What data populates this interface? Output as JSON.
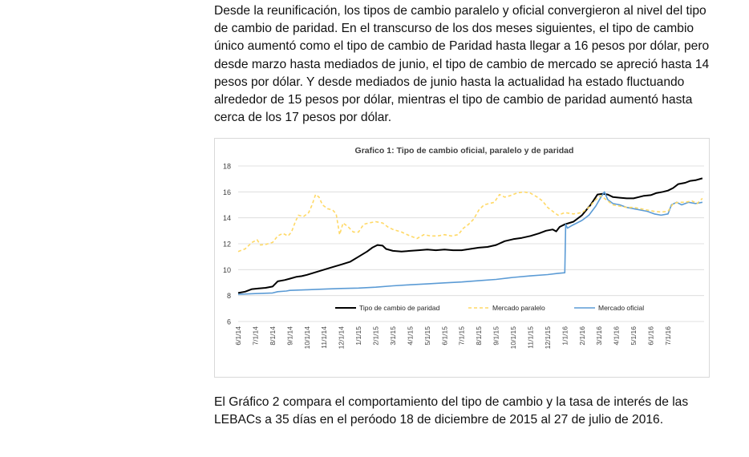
{
  "paragraphs": [
    "Desde la reunificación, los tipos de cambio paralelo y oficial convergieron al nivel del tipo de cambio de paridad. En el transcurso de los dos meses siguientes, el tipo de cambio único aumentó como el tipo de cambio de Paridad hasta llegar a 16 pesos por dólar, pero desde marzo hasta mediados de junio, el tipo de cambio de mercado se apreció hasta 14 pesos por dólar. Y desde mediados de junio hasta la actualidad ha estado fluctuando alrededor de 15 pesos por dólar, mientras el tipo de cambio de paridad aumentó hasta cerca de los 17 pesos por dólar.",
    "El Gráfico 2 compara el comportamiento del tipo de cambio y la tasa de interés de las LEBACs a 35 días en el peróodo 18 de diciembre de 2015 al 27 de julio de 2016."
  ],
  "chart_data": {
    "type": "line",
    "title": "Grafico 1: Tipo de cambio oficial, paralelo y de paridad",
    "xlabel": "",
    "ylabel": "",
    "ylim": [
      6,
      18
    ],
    "yticks": [
      6,
      8,
      10,
      12,
      14,
      16,
      18
    ],
    "xlim": [
      0,
      27.1
    ],
    "categories": [
      "6/1/14",
      "7/1/14",
      "8/1/14",
      "9/1/14",
      "10/1/14",
      "11/1/14",
      "12/1/14",
      "1/1/15",
      "2/1/15",
      "3/1/15",
      "4/1/15",
      "5/1/15",
      "6/1/15",
      "7/1/15",
      "8/1/15",
      "9/1/15",
      "10/1/15",
      "11/1/15",
      "12/1/15",
      "1/1/16",
      "2/1/16",
      "3/1/16",
      "4/1/16",
      "5/1/16",
      "6/1/16",
      "7/1/16"
    ],
    "legend": [
      "Tipo de cambio de paridad",
      "Mercado paralelo",
      "Mercado oficial"
    ],
    "legend_position": "bottom-inside",
    "series": [
      {
        "name": "Tipo de cambio de paridad",
        "color": "#000000",
        "dash": "solid",
        "points": [
          [
            0,
            8.2
          ],
          [
            0.4,
            8.3
          ],
          [
            0.8,
            8.5
          ],
          [
            1.2,
            8.55
          ],
          [
            1.6,
            8.6
          ],
          [
            2,
            8.7
          ],
          [
            2.3,
            9.1
          ],
          [
            2.7,
            9.2
          ],
          [
            3,
            9.3
          ],
          [
            3.4,
            9.45
          ],
          [
            3.7,
            9.5
          ],
          [
            4,
            9.6
          ],
          [
            4.5,
            9.8
          ],
          [
            5,
            10.0
          ],
          [
            5.5,
            10.2
          ],
          [
            6,
            10.4
          ],
          [
            6.5,
            10.6
          ],
          [
            7,
            11.0
          ],
          [
            7.5,
            11.4
          ],
          [
            7.8,
            11.7
          ],
          [
            8.1,
            11.9
          ],
          [
            8.4,
            11.85
          ],
          [
            8.6,
            11.6
          ],
          [
            9,
            11.45
          ],
          [
            9.5,
            11.4
          ],
          [
            10,
            11.45
          ],
          [
            10.5,
            11.5
          ],
          [
            11,
            11.55
          ],
          [
            11.5,
            11.5
          ],
          [
            12,
            11.55
          ],
          [
            12.5,
            11.5
          ],
          [
            13,
            11.5
          ],
          [
            13.5,
            11.6
          ],
          [
            14,
            11.7
          ],
          [
            14.5,
            11.75
          ],
          [
            15,
            11.9
          ],
          [
            15.5,
            12.2
          ],
          [
            16,
            12.35
          ],
          [
            16.5,
            12.45
          ],
          [
            17,
            12.6
          ],
          [
            17.5,
            12.8
          ],
          [
            17.9,
            13.0
          ],
          [
            18.3,
            13.1
          ],
          [
            18.5,
            12.95
          ],
          [
            18.7,
            13.3
          ],
          [
            19,
            13.5
          ],
          [
            19.5,
            13.7
          ],
          [
            20,
            14.2
          ],
          [
            20.5,
            15.0
          ],
          [
            20.9,
            15.8
          ],
          [
            21.2,
            15.85
          ],
          [
            21.5,
            15.8
          ],
          [
            21.8,
            15.6
          ],
          [
            22.2,
            15.55
          ],
          [
            22.6,
            15.5
          ],
          [
            23,
            15.5
          ],
          [
            23.3,
            15.6
          ],
          [
            23.6,
            15.7
          ],
          [
            24,
            15.75
          ],
          [
            24.3,
            15.9
          ],
          [
            24.7,
            16.0
          ],
          [
            25,
            16.1
          ],
          [
            25.3,
            16.3
          ],
          [
            25.6,
            16.6
          ],
          [
            26,
            16.7
          ],
          [
            26.3,
            16.85
          ],
          [
            26.6,
            16.9
          ],
          [
            27,
            17.05
          ]
        ]
      },
      {
        "name": "Mercado paralelo",
        "color": "#ffd966",
        "dash": "dashed",
        "points": [
          [
            0,
            11.4
          ],
          [
            0.4,
            11.6
          ],
          [
            0.8,
            12.1
          ],
          [
            1.1,
            12.3
          ],
          [
            1.3,
            11.9
          ],
          [
            1.6,
            11.95
          ],
          [
            2,
            12.1
          ],
          [
            2.3,
            12.6
          ],
          [
            2.6,
            12.8
          ],
          [
            2.9,
            12.6
          ],
          [
            3.1,
            12.9
          ],
          [
            3.3,
            13.6
          ],
          [
            3.5,
            14.2
          ],
          [
            3.8,
            14.1
          ],
          [
            4.1,
            14.4
          ],
          [
            4.3,
            15.0
          ],
          [
            4.5,
            15.8
          ],
          [
            4.7,
            15.6
          ],
          [
            4.9,
            15.0
          ],
          [
            5.2,
            14.7
          ],
          [
            5.5,
            14.6
          ],
          [
            5.7,
            14.3
          ],
          [
            5.9,
            12.7
          ],
          [
            6.1,
            13.6
          ],
          [
            6.4,
            13.3
          ],
          [
            6.7,
            12.9
          ],
          [
            7,
            12.9
          ],
          [
            7.3,
            13.5
          ],
          [
            7.6,
            13.6
          ],
          [
            8,
            13.7
          ],
          [
            8.4,
            13.6
          ],
          [
            8.7,
            13.3
          ],
          [
            9,
            13.1
          ],
          [
            9.5,
            12.9
          ],
          [
            10,
            12.6
          ],
          [
            10.4,
            12.4
          ],
          [
            10.8,
            12.7
          ],
          [
            11.2,
            12.6
          ],
          [
            11.6,
            12.6
          ],
          [
            12,
            12.7
          ],
          [
            12.4,
            12.6
          ],
          [
            12.8,
            12.7
          ],
          [
            13.1,
            13.2
          ],
          [
            13.4,
            13.5
          ],
          [
            13.7,
            13.9
          ],
          [
            14,
            14.6
          ],
          [
            14.3,
            15.0
          ],
          [
            14.6,
            15.1
          ],
          [
            14.9,
            15.2
          ],
          [
            15.2,
            15.8
          ],
          [
            15.5,
            15.6
          ],
          [
            15.8,
            15.7
          ],
          [
            16.2,
            15.9
          ],
          [
            16.6,
            16.0
          ],
          [
            17,
            15.9
          ],
          [
            17.4,
            15.6
          ],
          [
            17.7,
            15.3
          ],
          [
            18,
            14.8
          ],
          [
            18.3,
            14.5
          ],
          [
            18.6,
            14.2
          ],
          [
            19,
            14.4
          ],
          [
            19.5,
            14.3
          ],
          [
            20,
            14.4
          ],
          [
            20.4,
            14.8
          ],
          [
            20.8,
            15.4
          ],
          [
            21.1,
            15.7
          ],
          [
            21.4,
            15.4
          ],
          [
            21.8,
            15.0
          ],
          [
            22.2,
            14.9
          ],
          [
            22.6,
            14.8
          ],
          [
            23,
            14.8
          ],
          [
            23.4,
            14.7
          ],
          [
            23.8,
            14.6
          ],
          [
            24.2,
            14.5
          ],
          [
            24.6,
            14.45
          ],
          [
            25,
            14.5
          ],
          [
            25.3,
            15.1
          ],
          [
            25.6,
            15.2
          ],
          [
            26,
            15.2
          ],
          [
            26.4,
            15.3
          ],
          [
            26.7,
            15.1
          ],
          [
            27,
            15.5
          ]
        ]
      },
      {
        "name": "Mercado oficial",
        "color": "#5b9bd5",
        "dash": "solid",
        "points": [
          [
            0,
            8.1
          ],
          [
            1,
            8.15
          ],
          [
            2,
            8.2
          ],
          [
            2.3,
            8.3
          ],
          [
            2.8,
            8.35
          ],
          [
            3,
            8.4
          ],
          [
            4,
            8.45
          ],
          [
            5,
            8.5
          ],
          [
            6,
            8.55
          ],
          [
            7,
            8.58
          ],
          [
            8,
            8.65
          ],
          [
            9,
            8.75
          ],
          [
            10,
            8.83
          ],
          [
            11,
            8.9
          ],
          [
            12,
            8.98
          ],
          [
            13,
            9.05
          ],
          [
            14,
            9.15
          ],
          [
            15,
            9.25
          ],
          [
            16,
            9.4
          ],
          [
            17,
            9.52
          ],
          [
            18,
            9.62
          ],
          [
            18.6,
            9.72
          ],
          [
            19.0,
            9.76
          ],
          [
            19.05,
            13.5
          ],
          [
            19.15,
            13.2
          ],
          [
            19.4,
            13.4
          ],
          [
            19.7,
            13.6
          ],
          [
            20,
            13.8
          ],
          [
            20.4,
            14.2
          ],
          [
            20.8,
            14.9
          ],
          [
            21.1,
            15.6
          ],
          [
            21.3,
            16.0
          ],
          [
            21.5,
            15.4
          ],
          [
            21.8,
            15.1
          ],
          [
            22.2,
            15.0
          ],
          [
            22.6,
            14.8
          ],
          [
            23,
            14.7
          ],
          [
            23.4,
            14.6
          ],
          [
            23.8,
            14.5
          ],
          [
            24.2,
            14.3
          ],
          [
            24.6,
            14.2
          ],
          [
            25,
            14.3
          ],
          [
            25.2,
            15.0
          ],
          [
            25.5,
            15.2
          ],
          [
            25.8,
            15.0
          ],
          [
            26.2,
            15.2
          ],
          [
            26.6,
            15.1
          ],
          [
            27,
            15.2
          ]
        ]
      }
    ]
  }
}
